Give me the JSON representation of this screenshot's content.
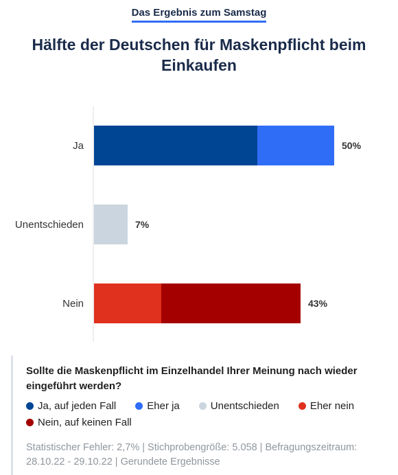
{
  "header": {
    "kicker": "Das Ergebnis zum Samstag",
    "title": "Hälfte der Deutschen für Maskenpflicht beim Einkaufen"
  },
  "chart_data": {
    "type": "bar",
    "orientation": "horizontal",
    "stacked": true,
    "categories": [
      "Ja",
      "Unentschieden",
      "Nein"
    ],
    "series": [
      {
        "name": "Ja, auf jeden Fall",
        "color": "#004494",
        "values": [
          34,
          0,
          0
        ]
      },
      {
        "name": "Eher ja",
        "color": "#2f6df6",
        "values": [
          16,
          0,
          0
        ]
      },
      {
        "name": "Unentschieden",
        "color": "#cad5df",
        "values": [
          0,
          7,
          0
        ]
      },
      {
        "name": "Eher nein",
        "color": "#e0301e",
        "values": [
          0,
          0,
          14
        ]
      },
      {
        "name": "Nein, auf keinen Fall",
        "color": "#a50000",
        "values": [
          0,
          0,
          29
        ]
      }
    ],
    "totals": [
      "50%",
      "7%",
      "43%"
    ],
    "xlim": [
      0,
      60
    ],
    "grid": false,
    "legend_position": "bottom"
  },
  "footer": {
    "question": "Sollte die Maskenpflicht im Einzelhandel Ihrer Meinung nach wieder eingeführt werden?",
    "note": "Statistischer Fehler: 2,7% | Stichprobengröße: 5.058 | Befragungszeitraum: 28.10.22 - 29.10.22 | Gerundete Ergebnisse"
  }
}
